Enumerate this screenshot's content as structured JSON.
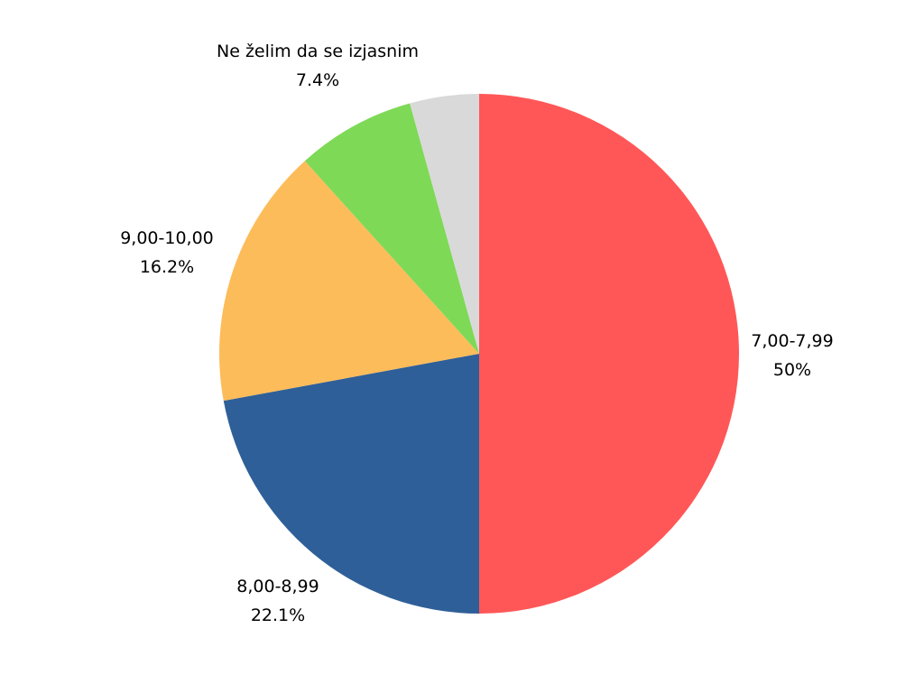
{
  "chart_data": {
    "type": "pie",
    "categories": [
      "7,00-7,99",
      "8,00-8,99",
      "9,00-10,00",
      "Ne želim da se izjasnim",
      ""
    ],
    "values": [
      50,
      22.1,
      16.2,
      7.4,
      4.3
    ],
    "value_labels": [
      "50%",
      "22.1%",
      "16.2%",
      "7.4%",
      ""
    ],
    "colors": [
      "#FF5757",
      "#2F5F98",
      "#FDBC5A",
      "#7ED957",
      "#D9D9D9"
    ],
    "start": "top",
    "direction": "clockwise",
    "legend": "none"
  }
}
